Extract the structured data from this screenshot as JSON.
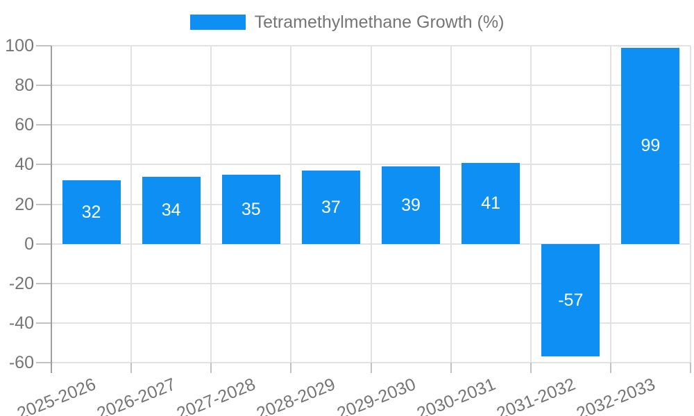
{
  "chart_data": {
    "type": "bar",
    "title": "",
    "legend": "Tetramethylmethane Growth (%)",
    "legend_position": "top",
    "categories": [
      "2025-2026",
      "2026-2027",
      "2027-2028",
      "2028-2029",
      "2029-2030",
      "2030-2031",
      "2031-2032",
      "2032-2033"
    ],
    "values": [
      32,
      34,
      35,
      37,
      39,
      41,
      -57,
      99
    ],
    "xlabel": "",
    "ylabel": "",
    "ylim": [
      -60,
      100
    ],
    "yticks": [
      -60,
      -40,
      -20,
      0,
      20,
      40,
      60,
      80,
      100
    ],
    "grid": "on",
    "bar_color": "#0d8ff3",
    "bar_label_color": "#ffffff",
    "axis_text_color": "#757575",
    "grid_color": "#e2e2e2",
    "axis_line_color": "#9e9e9e"
  }
}
